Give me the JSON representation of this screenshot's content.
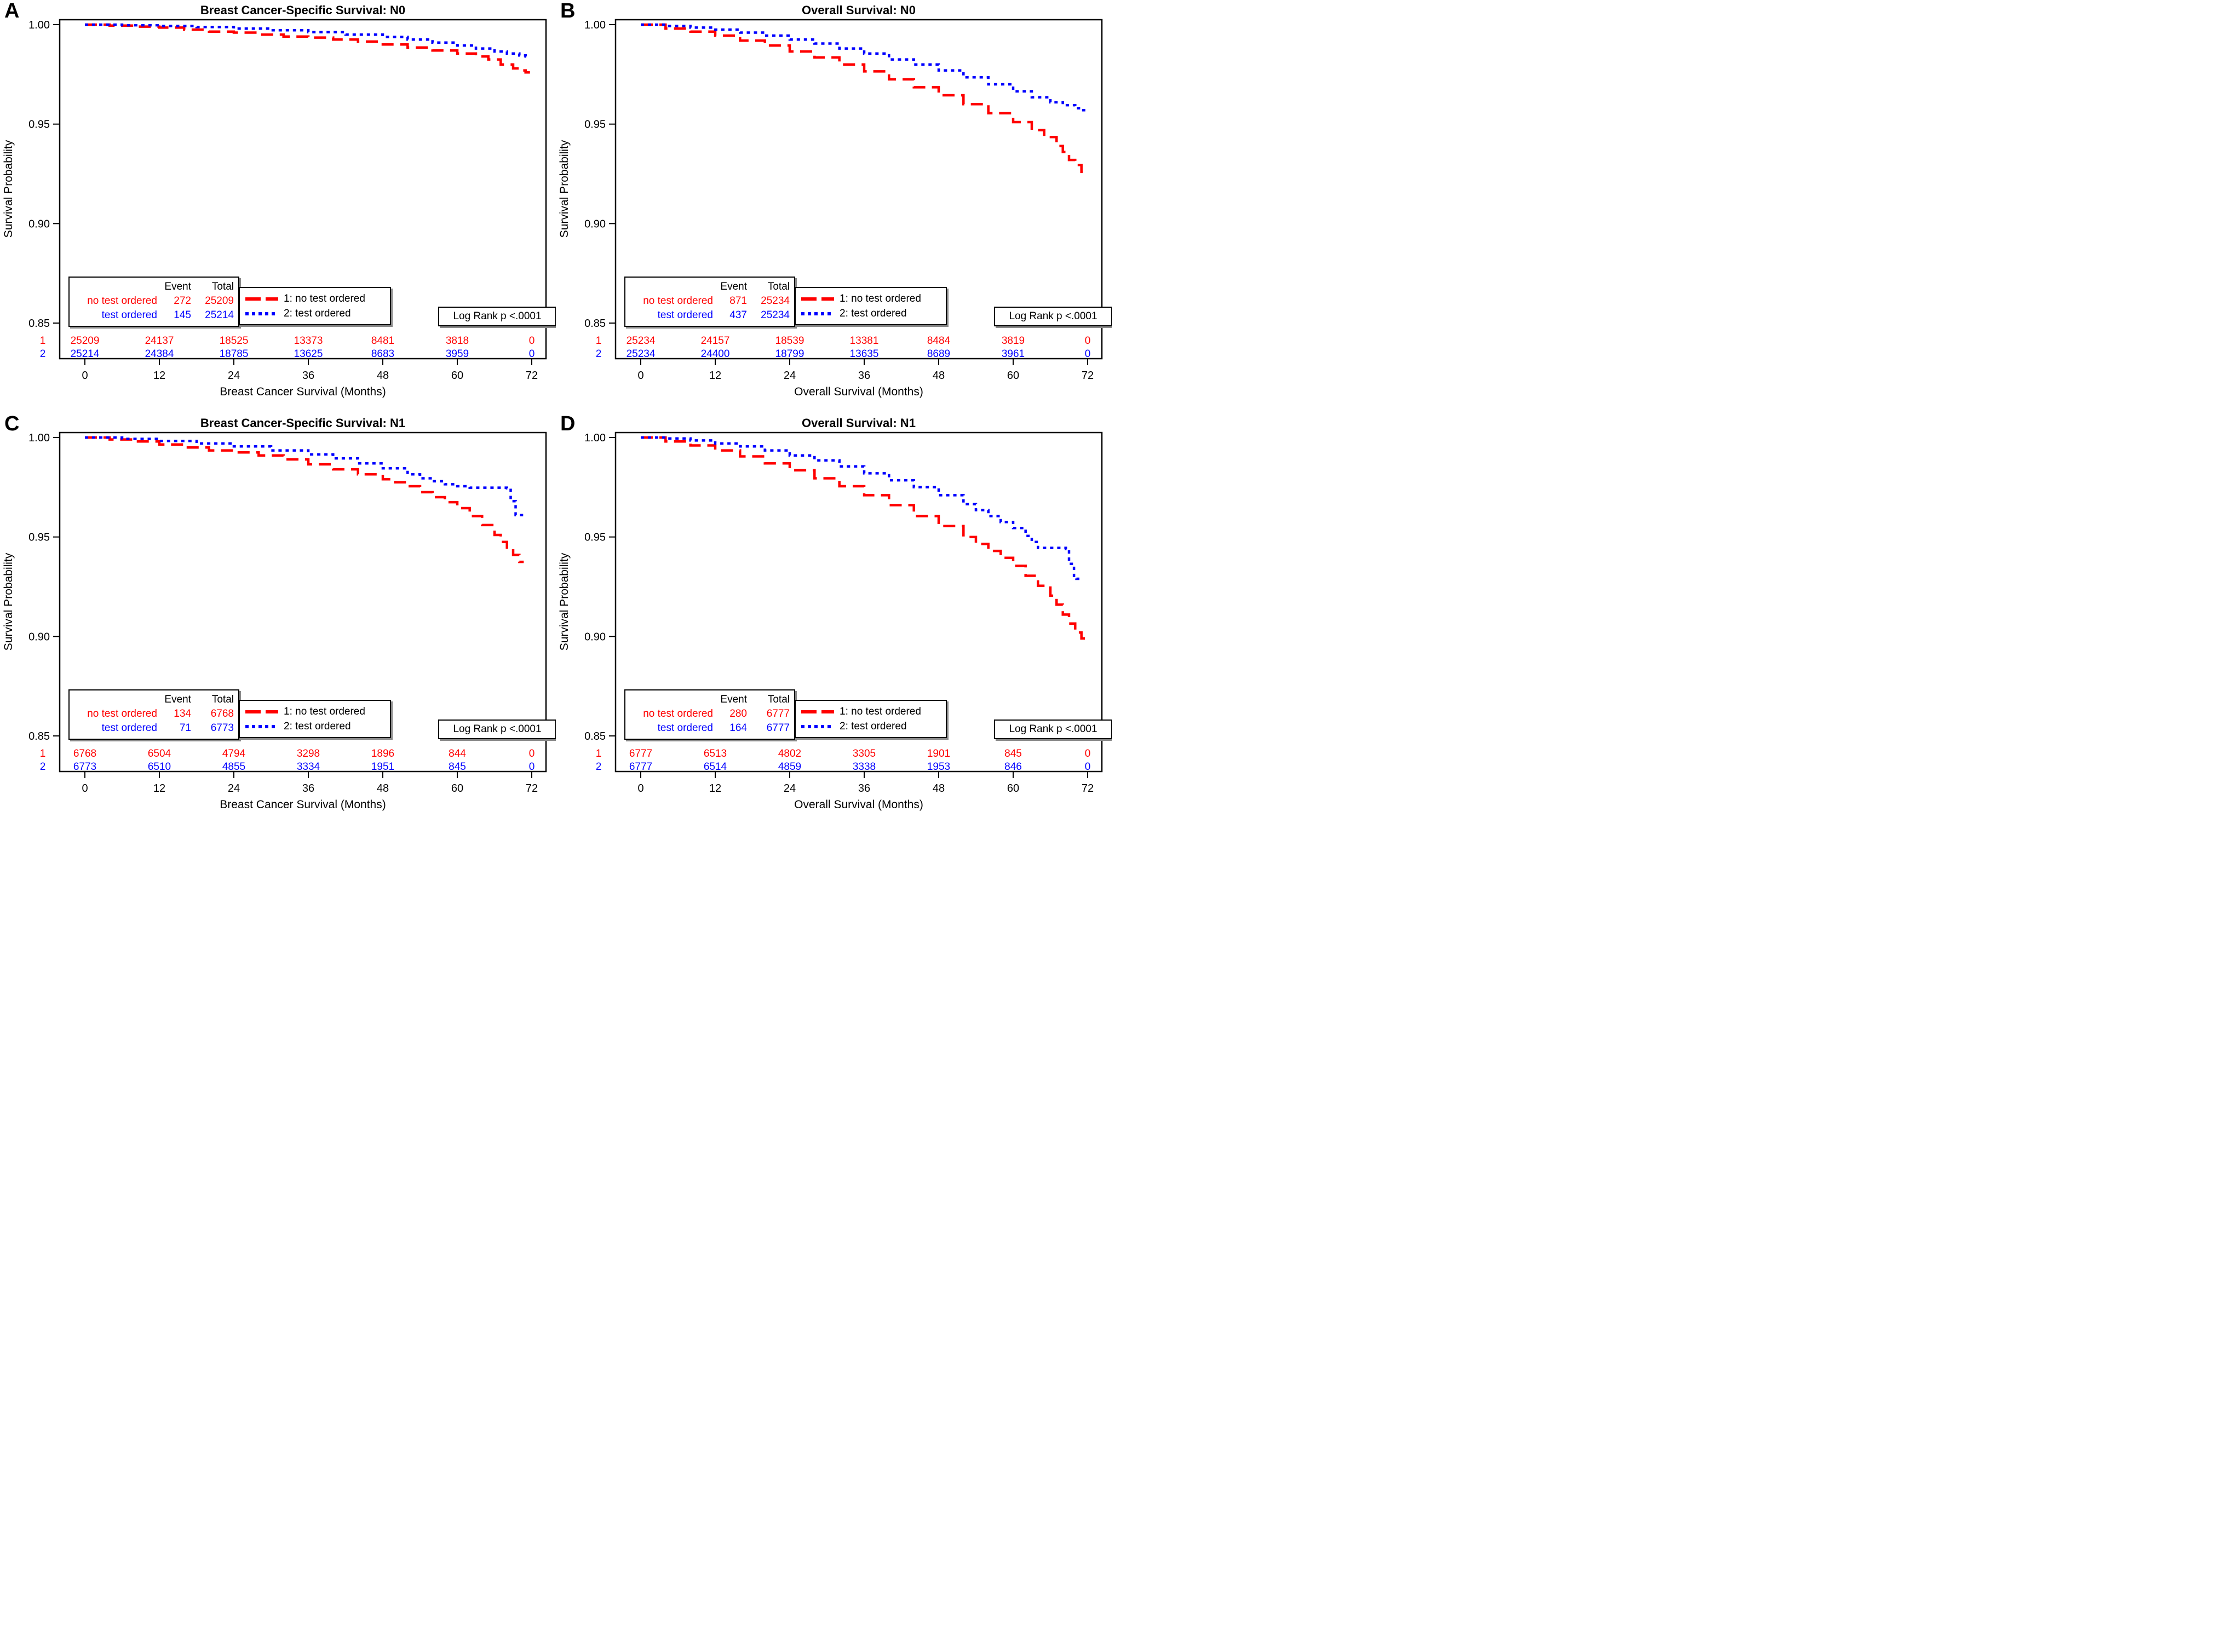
{
  "labels": {
    "event_header": "Event",
    "total_header": "Total"
  },
  "colors": {
    "series1": "#ff0000",
    "series2": "#0000ff",
    "text": "#000000",
    "frame": "#000000"
  },
  "chart_data": [
    {
      "id": "panel-a",
      "letter": "A",
      "type": "line",
      "title": "Breast Cancer-Specific Survival: N0",
      "xlabel": "Breast Cancer Survival (Months)",
      "ylabel": "Survival Probability",
      "logrank": "Log Rank p <.0001",
      "xlim": [
        0,
        72
      ],
      "ylim": [
        0.85,
        1.0
      ],
      "x_ticks": [
        0,
        12,
        24,
        36,
        48,
        60,
        72
      ],
      "y_ticks": [
        1.0,
        0.95,
        0.9,
        0.85
      ],
      "y_tick_labels": [
        "1.00",
        "0.95",
        "0.90",
        "0.85"
      ],
      "series": [
        {
          "name": "1: no test ordered",
          "group": "no test ordered",
          "row_label": "1",
          "color": "#ff0000",
          "dash": "long-dash",
          "event": 272,
          "total": 25209,
          "at_risk": [
            25209,
            24137,
            18525,
            13373,
            8481,
            3818,
            0
          ],
          "points": [
            [
              0,
              1.0
            ],
            [
              4,
              0.9995
            ],
            [
              8,
              0.999
            ],
            [
              12,
              0.9985
            ],
            [
              16,
              0.9975
            ],
            [
              20,
              0.9965
            ],
            [
              24,
              0.996
            ],
            [
              28,
              0.995
            ],
            [
              32,
              0.994
            ],
            [
              36,
              0.9935
            ],
            [
              40,
              0.9925
            ],
            [
              44,
              0.9915
            ],
            [
              48,
              0.99
            ],
            [
              52,
              0.9885
            ],
            [
              56,
              0.987
            ],
            [
              60,
              0.9855
            ],
            [
              63,
              0.984
            ],
            [
              65,
              0.9825
            ],
            [
              67,
              0.98
            ],
            [
              69,
              0.978
            ],
            [
              70,
              0.977
            ],
            [
              71,
              0.976
            ]
          ]
        },
        {
          "name": "2: test ordered",
          "group": "test ordered",
          "row_label": "2",
          "color": "#0000ff",
          "dash": "dotted",
          "event": 145,
          "total": 25214,
          "at_risk": [
            25214,
            24384,
            18785,
            13625,
            8683,
            3959,
            0
          ],
          "points": [
            [
              0,
              1.0
            ],
            [
              6,
              0.9997
            ],
            [
              12,
              0.9993
            ],
            [
              18,
              0.9988
            ],
            [
              24,
              0.998
            ],
            [
              30,
              0.9972
            ],
            [
              36,
              0.9962
            ],
            [
              42,
              0.995
            ],
            [
              48,
              0.9938
            ],
            [
              52,
              0.9925
            ],
            [
              56,
              0.991
            ],
            [
              60,
              0.9895
            ],
            [
              63,
              0.988
            ],
            [
              66,
              0.9865
            ],
            [
              68,
              0.9855
            ],
            [
              70,
              0.9845
            ],
            [
              71,
              0.984
            ]
          ]
        }
      ]
    },
    {
      "id": "panel-b",
      "letter": "B",
      "type": "line",
      "title": "Overall Survival: N0",
      "xlabel": "Overall Survival (Months)",
      "ylabel": "Survival Probability",
      "logrank": "Log Rank p <.0001",
      "xlim": [
        0,
        72
      ],
      "ylim": [
        0.85,
        1.0
      ],
      "x_ticks": [
        0,
        12,
        24,
        36,
        48,
        60,
        72
      ],
      "y_ticks": [
        1.0,
        0.95,
        0.9,
        0.85
      ],
      "y_tick_labels": [
        "1.00",
        "0.95",
        "0.90",
        "0.85"
      ],
      "series": [
        {
          "name": "1: no test ordered",
          "group": "no test ordered",
          "row_label": "1",
          "color": "#ff0000",
          "dash": "long-dash",
          "event": 871,
          "total": 25234,
          "at_risk": [
            25234,
            24157,
            18539,
            13381,
            8484,
            3819,
            0
          ],
          "points": [
            [
              0,
              1.0
            ],
            [
              4,
              0.998
            ],
            [
              8,
              0.9965
            ],
            [
              12,
              0.9945
            ],
            [
              16,
              0.992
            ],
            [
              20,
              0.9895
            ],
            [
              24,
              0.9865
            ],
            [
              28,
              0.9835
            ],
            [
              32,
              0.98
            ],
            [
              36,
              0.9765
            ],
            [
              40,
              0.9725
            ],
            [
              44,
              0.9685
            ],
            [
              48,
              0.9645
            ],
            [
              52,
              0.96
            ],
            [
              56,
              0.9555
            ],
            [
              60,
              0.951
            ],
            [
              63,
              0.947
            ],
            [
              65,
              0.9435
            ],
            [
              67,
              0.939
            ],
            [
              68,
              0.936
            ],
            [
              69,
              0.932
            ],
            [
              70,
              0.9295
            ],
            [
              71,
              0.926
            ]
          ]
        },
        {
          "name": "2: test ordered",
          "group": "test ordered",
          "row_label": "2",
          "color": "#0000ff",
          "dash": "dotted",
          "event": 437,
          "total": 25234,
          "at_risk": [
            25234,
            24400,
            18799,
            13635,
            8689,
            3961,
            0
          ],
          "points": [
            [
              0,
              1.0
            ],
            [
              4,
              0.9993
            ],
            [
              8,
              0.9985
            ],
            [
              12,
              0.9975
            ],
            [
              16,
              0.996
            ],
            [
              20,
              0.9945
            ],
            [
              24,
              0.9925
            ],
            [
              28,
              0.9905
            ],
            [
              32,
              0.988
            ],
            [
              36,
              0.9855
            ],
            [
              40,
              0.9825
            ],
            [
              44,
              0.98
            ],
            [
              48,
              0.977
            ],
            [
              52,
              0.9735
            ],
            [
              56,
              0.97
            ],
            [
              60,
              0.9665
            ],
            [
              63,
              0.9635
            ],
            [
              66,
              0.961
            ],
            [
              68,
              0.9595
            ],
            [
              70,
              0.958
            ],
            [
              71,
              0.957
            ]
          ]
        }
      ]
    },
    {
      "id": "panel-c",
      "letter": "C",
      "type": "line",
      "title": "Breast Cancer-Specific Survival: N1",
      "xlabel": "Breast Cancer Survival (Months)",
      "ylabel": "Survival Probability",
      "logrank": "Log Rank p <.0001",
      "xlim": [
        0,
        72
      ],
      "ylim": [
        0.85,
        1.0
      ],
      "x_ticks": [
        0,
        12,
        24,
        36,
        48,
        60,
        72
      ],
      "y_ticks": [
        1.0,
        0.95,
        0.9,
        0.85
      ],
      "y_tick_labels": [
        "1.00",
        "0.95",
        "0.90",
        "0.85"
      ],
      "series": [
        {
          "name": "1: no test ordered",
          "group": "no test ordered",
          "row_label": "1",
          "color": "#ff0000",
          "dash": "long-dash",
          "event": 134,
          "total": 6768,
          "at_risk": [
            6768,
            6504,
            4794,
            3298,
            1896,
            844,
            0
          ],
          "points": [
            [
              0,
              1.0
            ],
            [
              4,
              0.999
            ],
            [
              8,
              0.998
            ],
            [
              12,
              0.9965
            ],
            [
              16,
              0.995
            ],
            [
              20,
              0.9935
            ],
            [
              24,
              0.9925
            ],
            [
              28,
              0.991
            ],
            [
              32,
              0.989
            ],
            [
              36,
              0.9865
            ],
            [
              40,
              0.984
            ],
            [
              44,
              0.9815
            ],
            [
              48,
              0.979
            ],
            [
              50,
              0.9775
            ],
            [
              52,
              0.9755
            ],
            [
              54,
              0.9725
            ],
            [
              56,
              0.97
            ],
            [
              58,
              0.9675
            ],
            [
              60,
              0.9645
            ],
            [
              62,
              0.9605
            ],
            [
              64,
              0.956
            ],
            [
              66,
              0.951
            ],
            [
              67,
              0.9475
            ],
            [
              68,
              0.944
            ],
            [
              69,
              0.941
            ],
            [
              70,
              0.9375
            ]
          ]
        },
        {
          "name": "2: test ordered",
          "group": "test ordered",
          "row_label": "2",
          "color": "#0000ff",
          "dash": "dotted",
          "event": 71,
          "total": 6773,
          "at_risk": [
            6773,
            6510,
            4855,
            3334,
            1951,
            845,
            0
          ],
          "points": [
            [
              0,
              1.0
            ],
            [
              6,
              0.9993
            ],
            [
              12,
              0.9983
            ],
            [
              18,
              0.997
            ],
            [
              24,
              0.9955
            ],
            [
              30,
              0.9935
            ],
            [
              36,
              0.9915
            ],
            [
              40,
              0.9895
            ],
            [
              44,
              0.987
            ],
            [
              48,
              0.9845
            ],
            [
              52,
              0.9815
            ],
            [
              54,
              0.9795
            ],
            [
              56,
              0.978
            ],
            [
              58,
              0.9765
            ],
            [
              60,
              0.9755
            ],
            [
              62,
              0.9748
            ],
            [
              68,
              0.9745
            ],
            [
              68.6,
              0.968
            ],
            [
              69.4,
              0.961
            ],
            [
              70,
              0.961
            ]
          ]
        }
      ]
    },
    {
      "id": "panel-d",
      "letter": "D",
      "type": "line",
      "title": "Overall Survival: N1",
      "xlabel": "Overall Survival (Months)",
      "ylabel": "Survival Probability",
      "logrank": "Log Rank p <.0001",
      "xlim": [
        0,
        72
      ],
      "ylim": [
        0.85,
        1.0
      ],
      "x_ticks": [
        0,
        12,
        24,
        36,
        48,
        60,
        72
      ],
      "y_ticks": [
        1.0,
        0.95,
        0.9,
        0.85
      ],
      "y_tick_labels": [
        "1.00",
        "0.95",
        "0.90",
        "0.85"
      ],
      "series": [
        {
          "name": "1: no test ordered",
          "group": "no test ordered",
          "row_label": "1",
          "color": "#ff0000",
          "dash": "long-dash",
          "event": 280,
          "total": 6777,
          "at_risk": [
            6777,
            6513,
            4802,
            3305,
            1901,
            845,
            0
          ],
          "points": [
            [
              0,
              1.0
            ],
            [
              4,
              0.998
            ],
            [
              8,
              0.996
            ],
            [
              12,
              0.9935
            ],
            [
              16,
              0.9905
            ],
            [
              20,
              0.987
            ],
            [
              24,
              0.9835
            ],
            [
              28,
              0.9795
            ],
            [
              32,
              0.9755
            ],
            [
              36,
              0.971
            ],
            [
              40,
              0.966
            ],
            [
              44,
              0.9605
            ],
            [
              48,
              0.9555
            ],
            [
              52,
              0.95
            ],
            [
              54,
              0.9465
            ],
            [
              56,
              0.943
            ],
            [
              58,
              0.9395
            ],
            [
              60,
              0.9355
            ],
            [
              62,
              0.9305
            ],
            [
              64,
              0.9255
            ],
            [
              66,
              0.9205
            ],
            [
              67,
              0.916
            ],
            [
              68,
              0.911
            ],
            [
              69,
              0.9065
            ],
            [
              70,
              0.902
            ],
            [
              71,
              0.899
            ]
          ]
        },
        {
          "name": "2: test ordered",
          "group": "test ordered",
          "row_label": "2",
          "color": "#0000ff",
          "dash": "dotted",
          "event": 164,
          "total": 6777,
          "at_risk": [
            6777,
            6514,
            4859,
            3338,
            1953,
            846,
            0
          ],
          "points": [
            [
              0,
              1.0
            ],
            [
              4,
              0.9995
            ],
            [
              8,
              0.9985
            ],
            [
              12,
              0.997
            ],
            [
              16,
              0.9955
            ],
            [
              20,
              0.9935
            ],
            [
              24,
              0.991
            ],
            [
              28,
              0.9885
            ],
            [
              32,
              0.9855
            ],
            [
              36,
              0.982
            ],
            [
              40,
              0.9785
            ],
            [
              44,
              0.975
            ],
            [
              48,
              0.971
            ],
            [
              52,
              0.9665
            ],
            [
              54,
              0.9635
            ],
            [
              56,
              0.9605
            ],
            [
              58,
              0.9575
            ],
            [
              60,
              0.9545
            ],
            [
              62,
              0.9505
            ],
            [
              63,
              0.9475
            ],
            [
              64,
              0.9445
            ],
            [
              68.5,
              0.944
            ],
            [
              69,
              0.9365
            ],
            [
              69.8,
              0.9295
            ],
            [
              70.2,
              0.929
            ]
          ]
        }
      ]
    }
  ]
}
